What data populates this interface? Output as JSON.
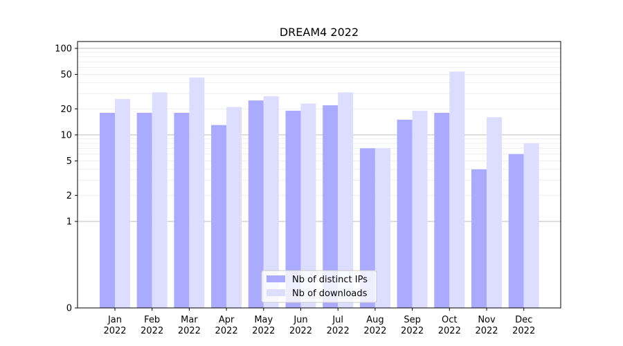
{
  "chart_data": {
    "type": "bar",
    "title": "DREAM4 2022",
    "xlabel": "",
    "ylabel": "",
    "y_scale": "symlog",
    "ylim": [
      0,
      120
    ],
    "y_ticks": [
      0,
      1,
      2,
      5,
      10,
      20,
      50,
      100
    ],
    "y_tick_labels": [
      "0",
      "1",
      "2",
      "5",
      "10",
      "20",
      "50",
      "100"
    ],
    "categories": [
      "Jan\n2022",
      "Feb\n2022",
      "Mar\n2022",
      "Apr\n2022",
      "May\n2022",
      "Jun\n2022",
      "Jul\n2022",
      "Aug\n2022",
      "Sep\n2022",
      "Oct\n2022",
      "Nov\n2022",
      "Dec\n2022"
    ],
    "series": [
      {
        "name": "Nb of distinct IPs",
        "color": "#aaaaff",
        "values": [
          18,
          18,
          18,
          13,
          25,
          19,
          22,
          7,
          15,
          18,
          4,
          6
        ]
      },
      {
        "name": "Nb of downloads",
        "color": "#ddddff",
        "values": [
          26,
          31,
          46,
          21,
          28,
          23,
          31,
          7,
          19,
          54,
          16,
          8
        ]
      }
    ],
    "grid": true,
    "legend": "lower-center"
  }
}
